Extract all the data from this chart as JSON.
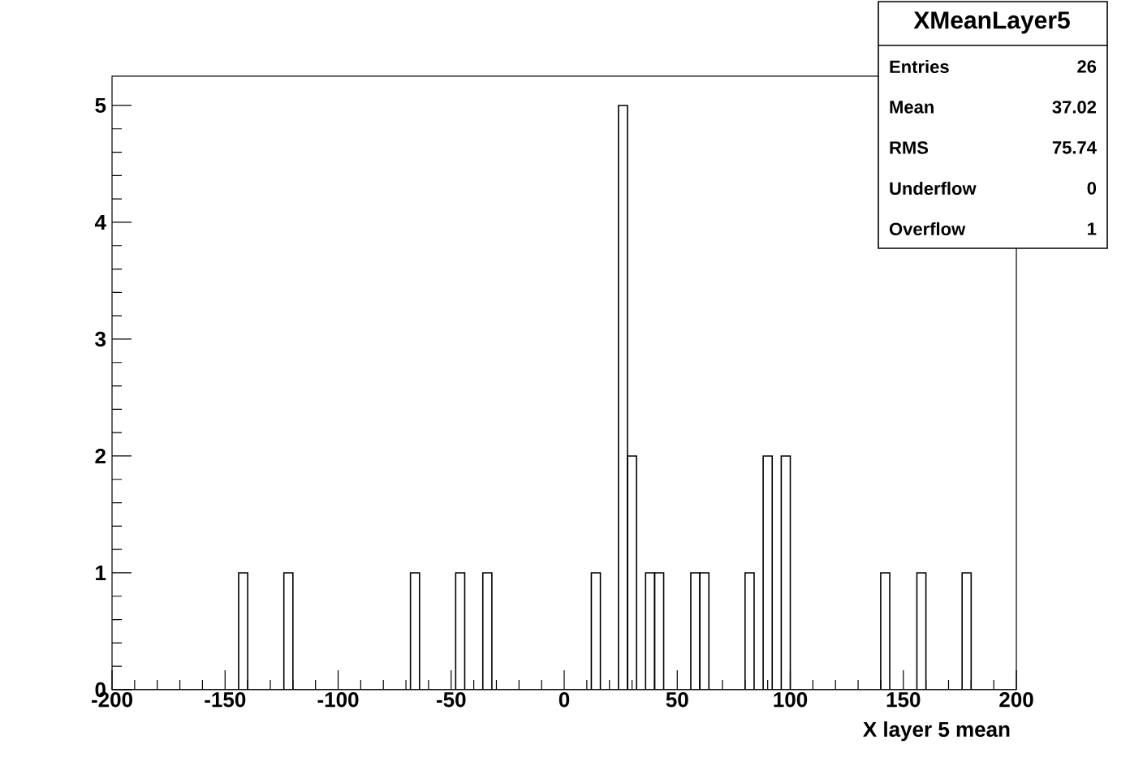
{
  "chart_data": {
    "type": "histogram",
    "title": "XMeanLayer5",
    "xlabel": "X layer 5 mean",
    "annotations": [
      "Entries",
      "26",
      "Mean",
      "37.02",
      "RMS",
      "75.74",
      "Underflow",
      "0",
      "Overflow",
      "1"
    ],
    "bins": [
      -200,
      -196,
      -192,
      -188,
      -184,
      -180,
      -176,
      -172,
      -168,
      -164,
      -160,
      -156,
      -152,
      -148,
      -144,
      -140,
      -136,
      -132,
      -128,
      -124,
      -120,
      -116,
      -112,
      -108,
      -104,
      -100,
      -96,
      -92,
      -88,
      -84,
      -80,
      -76,
      -72,
      -68,
      -64,
      -60,
      -56,
      -52,
      -48,
      -44,
      -40,
      -36,
      -32,
      -28,
      -24,
      -20,
      -16,
      -12,
      -8,
      -4,
      0,
      4,
      8,
      12,
      16,
      20,
      24,
      28,
      32,
      36,
      40,
      44,
      48,
      52,
      56,
      60,
      64,
      68,
      72,
      76,
      80,
      84,
      88,
      92,
      96,
      100,
      104,
      108,
      112,
      116,
      120,
      124,
      128,
      132,
      136,
      140,
      144,
      148,
      152,
      156,
      160,
      164,
      168,
      172,
      176,
      180,
      184,
      188,
      192,
      196,
      200
    ],
    "values": [
      0,
      0,
      0,
      0,
      0,
      0,
      0,
      0,
      0,
      0,
      0,
      0,
      0,
      0,
      1,
      0,
      0,
      0,
      0,
      1,
      0,
      0,
      0,
      0,
      0,
      0,
      0,
      0,
      0,
      0,
      0,
      0,
      0,
      1,
      0,
      0,
      0,
      0,
      1,
      0,
      0,
      1,
      0,
      0,
      0,
      0,
      0,
      0,
      0,
      0,
      0,
      0,
      0,
      1,
      0,
      0,
      5,
      2,
      0,
      1,
      1,
      0,
      0,
      0,
      1,
      1,
      0,
      0,
      0,
      0,
      1,
      0,
      2,
      0,
      2,
      0,
      0,
      0,
      0,
      0,
      0,
      0,
      0,
      0,
      0,
      1,
      0,
      0,
      0,
      1,
      0,
      0,
      0,
      0,
      1,
      0,
      0,
      0,
      0,
      0
    ],
    "color": "#000000",
    "xlim": [
      -200,
      200
    ],
    "xticks": [
      -200,
      -150,
      -100,
      -50,
      0,
      50,
      100,
      150,
      200
    ],
    "ylim": [
      0,
      5.25
    ],
    "yticks": [
      0,
      1,
      2,
      3,
      4,
      5
    ]
  }
}
